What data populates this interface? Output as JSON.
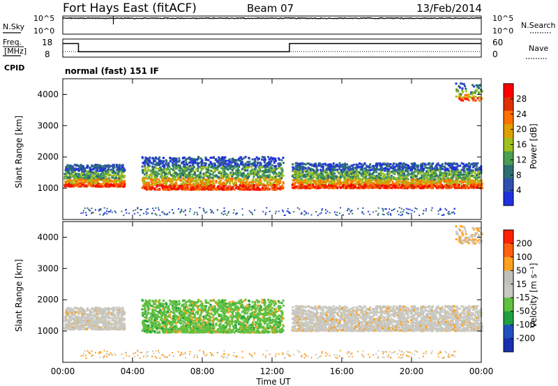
{
  "header": {
    "station": "Fort Hays East (fitACF)",
    "beam": "Beam 07",
    "date": "13/Feb/2014"
  },
  "labels": {
    "nsky": "N.Sky",
    "nsearch": "N.Search",
    "freq_line1": "Freq.",
    "freq_line2": "[MHz]",
    "nave": "Nave",
    "cpid": "CPID",
    "cpid_value": "normal (fast) 151 IF",
    "xlabel": "Time UT",
    "ylabel": "Slant Range [km]",
    "power_label": "Power [dB]",
    "velocity_label": "Velocity [m s⁻¹]",
    "noise_hi": "10^5",
    "noise_lo": "10^0",
    "freq_hi": "18",
    "freq_lo": "8",
    "nave_hi": "60",
    "nave_lo": "0"
  },
  "chart_data": {
    "type": "heatmap",
    "x_unit": "hours UT",
    "x_ticks": [
      "00:00",
      "04:00",
      "08:00",
      "12:00",
      "16:00",
      "20:00",
      "00:00"
    ],
    "x_tick_hours": [
      0,
      4,
      8,
      12,
      16,
      20,
      24
    ],
    "xlim": [
      0,
      24
    ],
    "ylim": [
      0,
      4500
    ],
    "y_ticks": [
      1000,
      2000,
      3000,
      4000
    ],
    "noise_panel": {
      "ylim_exp": [
        0,
        5
      ],
      "sky_level_exp": 4.4,
      "search_level_exp": 4.3,
      "spike_hour": 2.9
    },
    "freq_panel": {
      "ylim": [
        8,
        18
      ],
      "segments": [
        {
          "start": 0,
          "end": 0.9,
          "freq": 15.5
        },
        {
          "start": 0.9,
          "end": 13.0,
          "freq": 11.0
        },
        {
          "start": 13.0,
          "end": 24,
          "freq": 15.5
        }
      ],
      "nave_level": 18
    },
    "power_colorbar": {
      "ticks": [
        "4",
        "8",
        "12",
        "16",
        "20",
        "24",
        "28"
      ],
      "colors": [
        "#2030e0",
        "#3050b0",
        "#2a7070",
        "#4aa050",
        "#a0c020",
        "#e0a000",
        "#ff7000",
        "#e03000",
        "#ff0000"
      ]
    },
    "velocity_colorbar": {
      "ticks": [
        "200",
        "100",
        "50",
        "15",
        "-15",
        "-50",
        "-100",
        "-200"
      ],
      "colors": [
        "#1830b0",
        "#2050c0",
        "#20a040",
        "#60c040",
        "#c8c8c0",
        "#c0c0b8",
        "#ffa020",
        "#ff6010",
        "#ff2000"
      ]
    },
    "echo_bands": [
      {
        "t0": 0.05,
        "t1": 3.5,
        "r_lo": 1050,
        "r_hi": 1750,
        "type": "ground"
      },
      {
        "t0": 4.5,
        "t1": 12.6,
        "r_lo": 950,
        "r_hi": 2000,
        "type": "ionospheric"
      },
      {
        "t0": 13.1,
        "t1": 24,
        "r_lo": 1000,
        "r_hi": 1800,
        "type": "ground"
      },
      {
        "t0": 22.5,
        "t1": 24,
        "r_lo": 3800,
        "r_hi": 4350,
        "type": "far"
      }
    ]
  }
}
